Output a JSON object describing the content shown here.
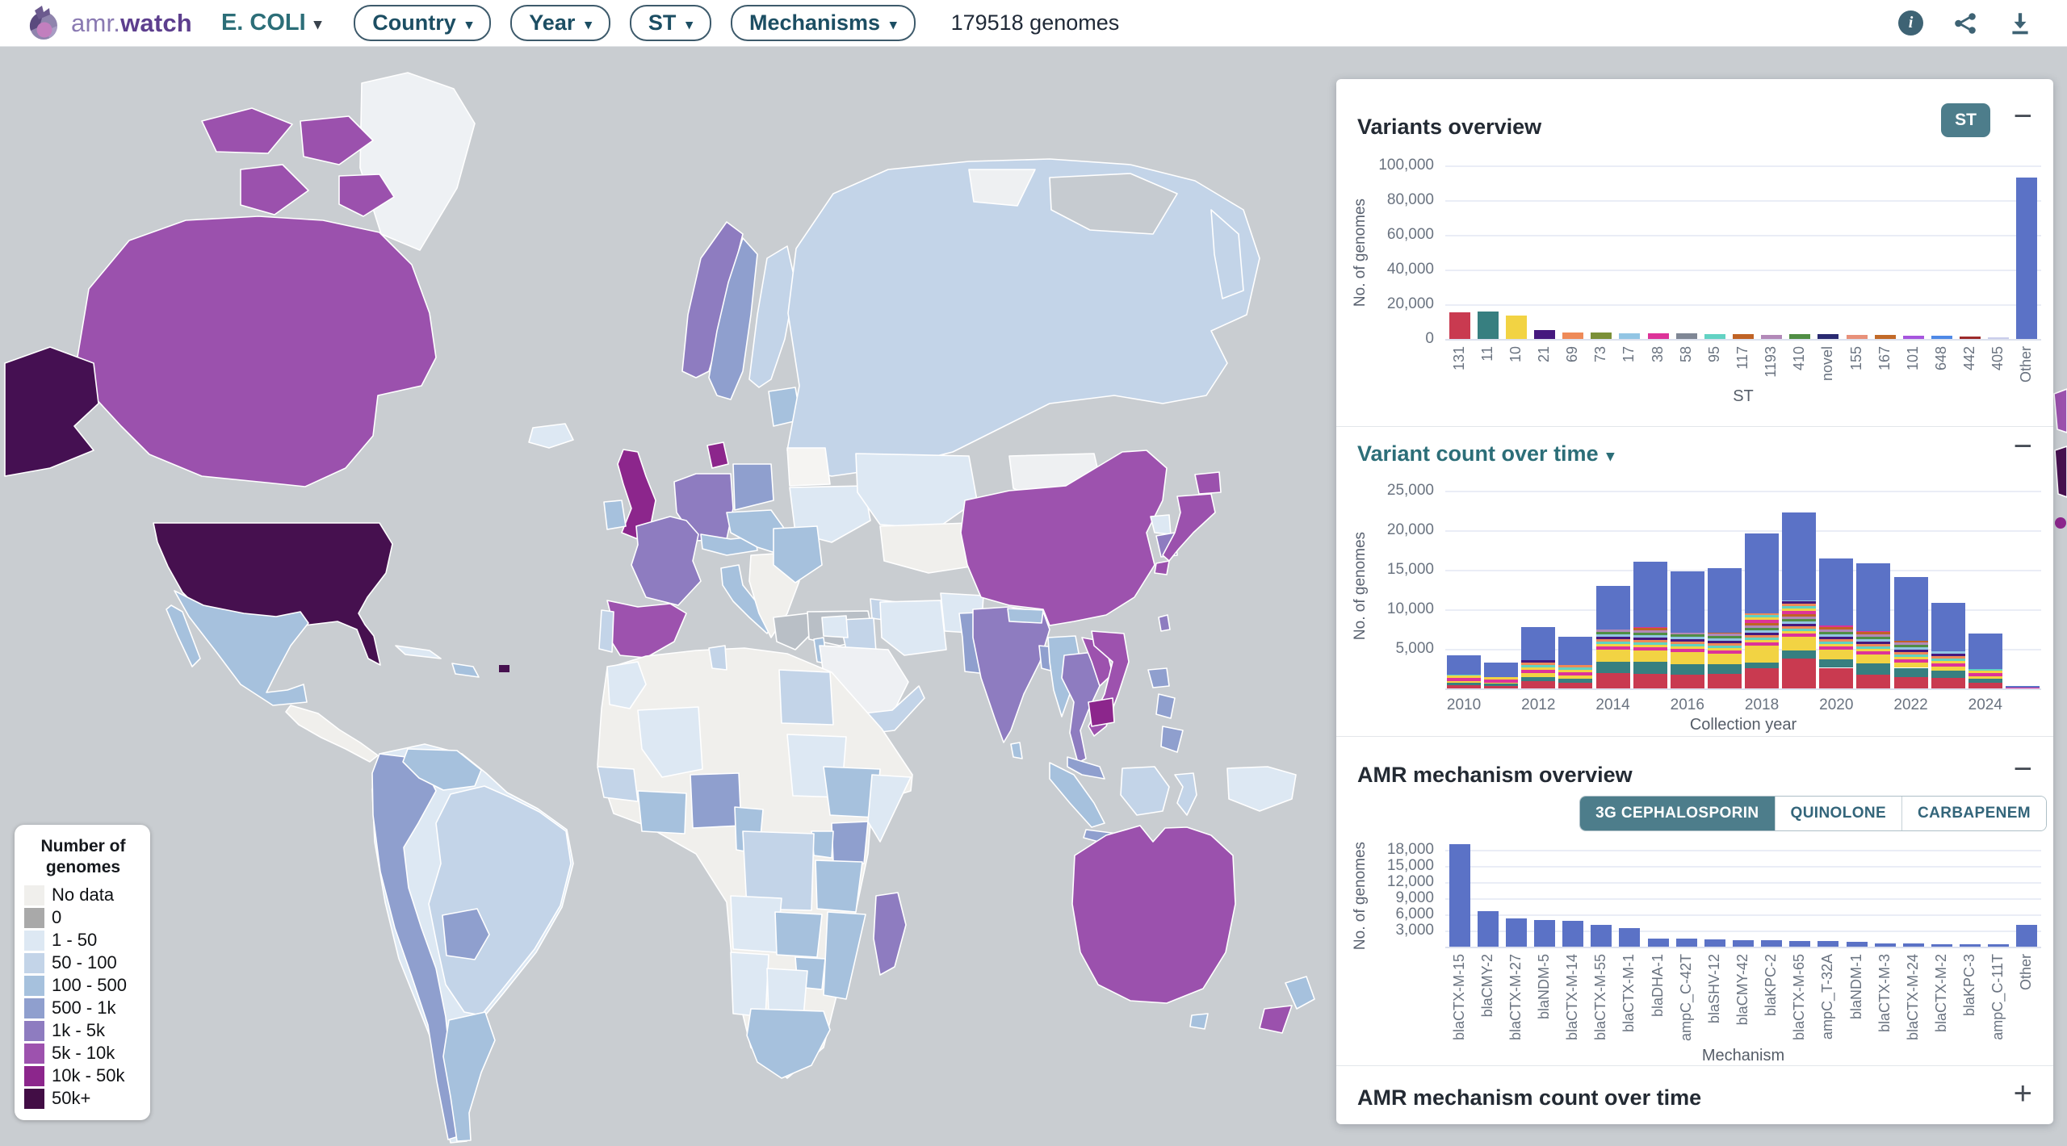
{
  "nav": {
    "brand": {
      "name_prefix": "amr.",
      "name_suffix": "watch"
    },
    "organism_selector": {
      "label": "E. COLI"
    },
    "filters": [
      {
        "id": "country",
        "label": "Country"
      },
      {
        "id": "year",
        "label": "Year"
      },
      {
        "id": "st",
        "label": "ST"
      },
      {
        "id": "mechanisms",
        "label": "Mechanisms"
      }
    ],
    "genome_count": "179518 genomes",
    "icons": [
      "info",
      "share",
      "download"
    ],
    "icon_color": "#3e6374"
  },
  "map_legend": {
    "title": "Number of genomes",
    "items": [
      {
        "label": "No data",
        "color": "#f0efec"
      },
      {
        "label": "0",
        "color": "#a9a9a9"
      },
      {
        "label": "1 - 50",
        "color": "#dde8f3"
      },
      {
        "label": "50 - 100",
        "color": "#c3d4e8"
      },
      {
        "label": "100 - 500",
        "color": "#a6c1dd"
      },
      {
        "label": "500 - 1k",
        "color": "#8f9fce"
      },
      {
        "label": "1k - 5k",
        "color": "#8e7cc0"
      },
      {
        "label": "5k - 10k",
        "color": "#9d52ae"
      },
      {
        "label": "10k - 50k",
        "color": "#8c268c"
      },
      {
        "label": "50k+",
        "color": "#420d45"
      }
    ]
  },
  "panels": {
    "variants_overview": {
      "title": "Variants overview",
      "badge": "ST",
      "collapse_icon": "−"
    },
    "variant_count_over_time": {
      "title": "Variant count over time",
      "caret": "▾",
      "collapse_icon": "−"
    },
    "amr_mechanism_overview": {
      "title": "AMR mechanism overview",
      "collapse_icon": "−",
      "tabs": [
        {
          "label": "3G CEPHALOSPORIN",
          "active": true
        },
        {
          "label": "QUINOLONE",
          "active": false
        },
        {
          "label": "CARBAPENEM",
          "active": false
        }
      ]
    },
    "amr_mechanism_count_over_time": {
      "title": "AMR mechanism count over time",
      "expand_icon": "+"
    }
  },
  "chart_data": [
    {
      "id": "variants-overview",
      "type": "bar",
      "title": "Variants overview",
      "xlabel": "ST",
      "ylabel": "No. of genomes",
      "ylim": [
        0,
        100000
      ],
      "yticks": [
        0,
        20000,
        40000,
        60000,
        80000,
        100000
      ],
      "grid": true,
      "legend_position": "none",
      "categories": [
        "131",
        "11",
        "10",
        "21",
        "69",
        "73",
        "17",
        "38",
        "58",
        "95",
        "117",
        "1193",
        "410",
        "novel",
        "155",
        "167",
        "101",
        "648",
        "442",
        "405",
        "Other"
      ],
      "values": [
        15500,
        16000,
        13500,
        5200,
        3900,
        3600,
        3300,
        3400,
        3100,
        2700,
        2900,
        2500,
        2600,
        2700,
        2200,
        2200,
        1700,
        1700,
        1400,
        1100,
        93000
      ],
      "colors": [
        "#c93a50",
        "#377f80",
        "#f2d343",
        "#45187e",
        "#ee8a58",
        "#7b9038",
        "#92c5e4",
        "#dd3399",
        "#7f8795",
        "#62d2c3",
        "#c06325",
        "#b289b8",
        "#508e44",
        "#292a71",
        "#e8917a",
        "#c26a28",
        "#a655de",
        "#4e89e6",
        "#9c2a2a",
        "#c9cdeb",
        "#5b72c6"
      ]
    },
    {
      "id": "variant-count-over-time",
      "type": "stacked-bar",
      "title": "Variant count over time",
      "xlabel": "Collection year",
      "ylabel": "No. of genomes",
      "ylim": [
        0,
        26000
      ],
      "yticks": [
        5000,
        10000,
        15000,
        20000,
        25000
      ],
      "grid": true,
      "legend_position": "none",
      "x": [
        2010,
        2011,
        2012,
        2013,
        2014,
        2015,
        2016,
        2017,
        2018,
        2019,
        2020,
        2021,
        2022,
        2023,
        2024,
        2025
      ],
      "xticks": [
        2010,
        2012,
        2014,
        2016,
        2018,
        2020,
        2022,
        2024
      ],
      "series": [
        {
          "name": "ST131",
          "color": "#c93a50",
          "values": [
            400,
            350,
            900,
            700,
            1900,
            1800,
            1700,
            1800,
            2500,
            3800,
            2600,
            1700,
            1400,
            1300,
            700,
            0
          ]
        },
        {
          "name": "ST11",
          "color": "#377f80",
          "values": [
            300,
            250,
            500,
            500,
            1500,
            1600,
            1400,
            1300,
            800,
            1000,
            1100,
            1500,
            1200,
            900,
            500,
            0
          ]
        },
        {
          "name": "ST10",
          "color": "#f2d343",
          "values": [
            200,
            150,
            500,
            400,
            1500,
            1400,
            1500,
            1300,
            2100,
            1700,
            1200,
            1100,
            700,
            600,
            300,
            0
          ]
        },
        {
          "name": "other STs (many, thin stripes)",
          "color": "multi",
          "values": [
            800,
            700,
            1700,
            1400,
            2500,
            2900,
            2400,
            2600,
            4100,
            4600,
            3100,
            2900,
            2700,
            1900,
            900,
            50
          ]
        },
        {
          "name": "Other",
          "color": "#5b72c6",
          "values": [
            2500,
            1850,
            4100,
            3500,
            5500,
            8300,
            7800,
            8200,
            10100,
            11100,
            8400,
            8600,
            8100,
            6100,
            4500,
            250
          ]
        }
      ]
    },
    {
      "id": "amr-mechanism-overview",
      "type": "bar",
      "title": "AMR mechanism overview",
      "xlabel": "Mechanism",
      "ylabel": "No. of genomes",
      "ylim": [
        0,
        19050
      ],
      "yticks": [
        3000,
        6000,
        9000,
        12000,
        15000,
        18000
      ],
      "grid": true,
      "legend_position": "none",
      "active_tab": "3G CEPHALOSPORIN",
      "categories": [
        "blaCTX-M-15",
        "blaCMY-2",
        "blaCTX-M-27",
        "blaNDM-5",
        "blaCTX-M-14",
        "blaCTX-M-55",
        "blaCTX-M-1",
        "blaDHA-1",
        "ampC_C-42T",
        "blaSHV-12",
        "blaCMY-42",
        "blaKPC-2",
        "blaCTX-M-65",
        "ampC_T-32A",
        "blaNDM-1",
        "blaCTX-M-3",
        "blaCTX-M-24",
        "blaCTX-M-2",
        "blaKPC-3",
        "ampC_C-11T",
        "Other"
      ],
      "values": [
        19000,
        6600,
        5300,
        5000,
        4800,
        4100,
        3400,
        1500,
        1450,
        1300,
        1250,
        1150,
        1100,
        1000,
        950,
        650,
        550,
        500,
        500,
        400,
        4000
      ],
      "colors": "#5b72c6"
    }
  ]
}
